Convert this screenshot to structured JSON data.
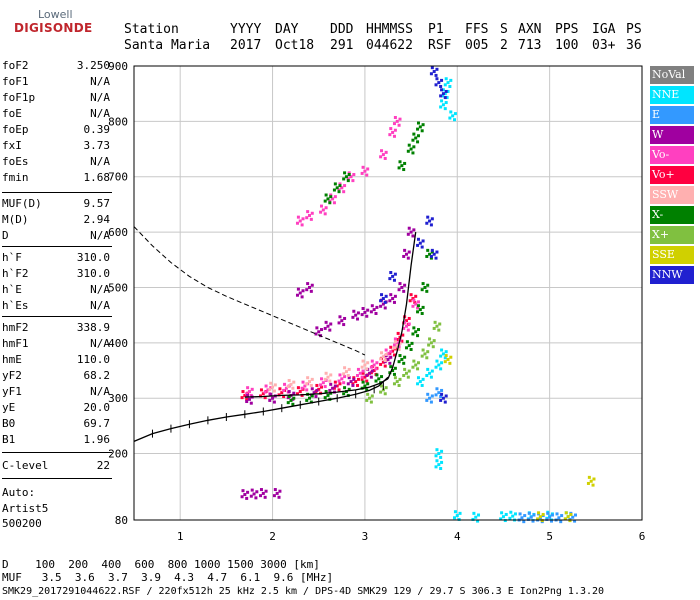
{
  "logo": {
    "line1": "Lowell",
    "line2": "DIGISONDE"
  },
  "header": {
    "labels": [
      "Station",
      "YYYY",
      "DAY",
      "DDD",
      "HHMMSS",
      "P1",
      "FFS",
      "S",
      "AXN",
      "PPS",
      "IGA",
      "PS"
    ],
    "values": [
      "Santa Maria",
      "2017",
      "Oct18",
      "291",
      "044622",
      "RSF",
      "005",
      "2",
      "713",
      "100",
      "03+",
      "36"
    ]
  },
  "params": [
    {
      "key": "foF2",
      "value": "3.250"
    },
    {
      "key": "foF1",
      "value": "N/A"
    },
    {
      "key": "foF1p",
      "value": "N/A"
    },
    {
      "key": "foE",
      "value": "N/A"
    },
    {
      "key": "foEp",
      "value": "0.39"
    },
    {
      "key": "fxI",
      "value": "3.73"
    },
    {
      "key": "foEs",
      "value": "N/A"
    },
    {
      "key": "fmin",
      "value": "1.68"
    },
    {
      "key": "MUF(D)",
      "value": "9.57"
    },
    {
      "key": "M(D)",
      "value": "2.94"
    },
    {
      "key": "D",
      "value": "N/A"
    },
    {
      "key": "h`F",
      "value": "310.0"
    },
    {
      "key": "h`F2",
      "value": "310.0"
    },
    {
      "key": "h`E",
      "value": "N/A"
    },
    {
      "key": "h`Es",
      "value": "N/A"
    },
    {
      "key": "hmF2",
      "value": "338.9"
    },
    {
      "key": "hmF1",
      "value": "N/A"
    },
    {
      "key": "hmE",
      "value": "110.0"
    },
    {
      "key": "yF2",
      "value": "68.2"
    },
    {
      "key": "yF1",
      "value": "N/A"
    },
    {
      "key": "yE",
      "value": "20.0"
    },
    {
      "key": "B0",
      "value": "69.7"
    },
    {
      "key": "B1",
      "value": "1.96"
    },
    {
      "key": "C-level",
      "value": "22"
    }
  ],
  "autoscale": [
    "Auto:",
    "Artist5",
    "500200"
  ],
  "bottom": {
    "line1": "D    100  200  400  600  800 1000 1500 3000 [km]",
    "line2": "MUF   3.5  3.6  3.7  3.9  4.3  4.7  6.1  9.6 [MHz]"
  },
  "footer": "SMK29_2017291044622.RSF / 220fx512h 25 kHz 2.5 km / DPS-4D SMK29 129 / 29.7 S 306.3 E Ion2Png 1.3.20",
  "legend": [
    {
      "label": "NoVal",
      "color": "#808080"
    },
    {
      "label": "NNE",
      "color": "#00e5ff"
    },
    {
      "label": "E",
      "color": "#3399ff"
    },
    {
      "label": "W",
      "color": "#a000a0"
    },
    {
      "label": "Vo-",
      "color": "#ff40c0"
    },
    {
      "label": "Vo+",
      "color": "#ff0040"
    },
    {
      "label": "SSW",
      "color": "#ffb0b0"
    },
    {
      "label": "X-",
      "color": "#008000"
    },
    {
      "label": "X+",
      "color": "#80c040"
    },
    {
      "label": "SSE",
      "color": "#d0d000"
    },
    {
      "label": "NNW",
      "color": "#2020d0"
    }
  ],
  "chart_data": {
    "type": "scatter",
    "xlim": [
      0.5,
      6.0
    ],
    "ylim": [
      80,
      900
    ],
    "xticks": [
      1,
      2,
      3,
      4,
      5,
      6
    ],
    "yticks": [
      80,
      200,
      300,
      400,
      500,
      600,
      700,
      800,
      900
    ],
    "grid": true,
    "legend_position": "right",
    "series": [
      {
        "colorIndex": 5,
        "points": [
          [
            1.7,
            305
          ],
          [
            1.9,
            308
          ],
          [
            2.1,
            310
          ],
          [
            2.3,
            312
          ],
          [
            2.5,
            316
          ],
          [
            2.7,
            322
          ],
          [
            2.9,
            330
          ],
          [
            3.0,
            338
          ],
          [
            3.1,
            350
          ],
          [
            3.2,
            365
          ],
          [
            3.3,
            385
          ],
          [
            3.38,
            410
          ],
          [
            3.45,
            440
          ],
          [
            3.52,
            480
          ]
        ]
      },
      {
        "colorIndex": 4,
        "points": [
          [
            1.75,
            312
          ],
          [
            1.95,
            315
          ],
          [
            2.15,
            318
          ],
          [
            2.35,
            322
          ],
          [
            2.55,
            328
          ],
          [
            2.75,
            335
          ],
          [
            2.95,
            345
          ],
          [
            3.1,
            360
          ],
          [
            3.25,
            380
          ],
          [
            3.35,
            400
          ],
          [
            3.45,
            430
          ],
          [
            3.55,
            470
          ],
          [
            2.3,
            620
          ],
          [
            2.4,
            630
          ],
          [
            2.55,
            640
          ],
          [
            2.65,
            660
          ],
          [
            2.75,
            680
          ],
          [
            2.85,
            700
          ],
          [
            3.0,
            710
          ],
          [
            3.2,
            740
          ],
          [
            3.3,
            780
          ],
          [
            3.35,
            800
          ]
        ]
      },
      {
        "colorIndex": 3,
        "points": [
          [
            1.75,
            298
          ],
          [
            2.0,
            300
          ],
          [
            2.2,
            305
          ],
          [
            2.45,
            310
          ],
          [
            2.65,
            318
          ],
          [
            2.85,
            330
          ],
          [
            3.05,
            345
          ],
          [
            3.25,
            370
          ],
          [
            2.5,
            420
          ],
          [
            2.6,
            430
          ],
          [
            2.75,
            440
          ],
          [
            2.9,
            450
          ],
          [
            3.0,
            455
          ],
          [
            3.1,
            460
          ],
          [
            3.2,
            470
          ],
          [
            3.3,
            480
          ],
          [
            3.4,
            500
          ],
          [
            2.3,
            490
          ],
          [
            2.4,
            500
          ],
          [
            3.45,
            560
          ],
          [
            3.5,
            600
          ],
          [
            1.7,
            126
          ],
          [
            1.8,
            127
          ],
          [
            1.9,
            128
          ],
          [
            2.05,
            128
          ]
        ]
      },
      {
        "colorIndex": 7,
        "points": [
          [
            2.2,
            296
          ],
          [
            2.4,
            300
          ],
          [
            2.6,
            305
          ],
          [
            2.8,
            312
          ],
          [
            3.0,
            322
          ],
          [
            3.15,
            335
          ],
          [
            3.3,
            350
          ],
          [
            3.4,
            370
          ],
          [
            3.48,
            395
          ],
          [
            3.55,
            420
          ],
          [
            3.6,
            460
          ],
          [
            3.65,
            500
          ],
          [
            3.7,
            560
          ],
          [
            3.4,
            720
          ],
          [
            3.5,
            750
          ],
          [
            3.55,
            770
          ],
          [
            3.6,
            790
          ],
          [
            2.6,
            660
          ],
          [
            2.7,
            680
          ],
          [
            2.8,
            700
          ]
        ]
      },
      {
        "colorIndex": 8,
        "points": [
          [
            3.05,
            300
          ],
          [
            3.2,
            315
          ],
          [
            3.35,
            330
          ],
          [
            3.45,
            345
          ],
          [
            3.55,
            360
          ],
          [
            3.65,
            380
          ],
          [
            3.72,
            400
          ],
          [
            3.78,
            430
          ]
        ]
      },
      {
        "colorIndex": 6,
        "points": [
          [
            2.0,
            320
          ],
          [
            2.2,
            325
          ],
          [
            2.4,
            330
          ],
          [
            2.6,
            338
          ],
          [
            2.8,
            348
          ],
          [
            3.0,
            360
          ],
          [
            3.2,
            375
          ],
          [
            3.35,
            395
          ]
        ]
      },
      {
        "colorIndex": 1,
        "points": [
          [
            3.6,
            330
          ],
          [
            3.7,
            345
          ],
          [
            3.8,
            360
          ],
          [
            3.85,
            380
          ],
          [
            3.85,
            830
          ],
          [
            3.87,
            850
          ],
          [
            3.9,
            870
          ],
          [
            3.95,
            810
          ],
          [
            3.8,
            200
          ],
          [
            3.8,
            180
          ],
          [
            4.0,
            88
          ],
          [
            4.2,
            85
          ],
          [
            4.5,
            86
          ],
          [
            4.6,
            87
          ],
          [
            4.8,
            86
          ],
          [
            5.0,
            87
          ],
          [
            5.2,
            86
          ]
        ]
      },
      {
        "colorIndex": 2,
        "points": [
          [
            3.7,
            300
          ],
          [
            3.8,
            310
          ],
          [
            4.7,
            84
          ],
          [
            4.8,
            85
          ],
          [
            4.9,
            84
          ],
          [
            5.0,
            85
          ],
          [
            5.1,
            84
          ],
          [
            5.25,
            85
          ]
        ]
      },
      {
        "colorIndex": 10,
        "points": [
          [
            3.75,
            890
          ],
          [
            3.8,
            870
          ],
          [
            3.85,
            850
          ],
          [
            3.7,
            620
          ],
          [
            3.6,
            580
          ],
          [
            3.75,
            560
          ],
          [
            3.85,
            300
          ],
          [
            3.2,
            480
          ],
          [
            3.3,
            520
          ]
        ]
      },
      {
        "colorIndex": 9,
        "points": [
          [
            5.45,
            150
          ],
          [
            5.2,
            86
          ],
          [
            4.9,
            86
          ],
          [
            3.9,
            370
          ]
        ]
      }
    ],
    "virtual_trace": [
      [
        1.7,
        302
      ],
      [
        1.9,
        303
      ],
      [
        2.1,
        305
      ],
      [
        2.3,
        306
      ],
      [
        2.5,
        308
      ],
      [
        2.7,
        311
      ],
      [
        2.9,
        315
      ],
      [
        3.05,
        320
      ],
      [
        3.15,
        326
      ],
      [
        3.25,
        335
      ]
    ],
    "upper_trace": [
      [
        3.25,
        335
      ],
      [
        3.3,
        355
      ],
      [
        3.35,
        385
      ],
      [
        3.4,
        420
      ],
      [
        3.45,
        470
      ],
      [
        3.5,
        540
      ],
      [
        3.55,
        600
      ]
    ],
    "profile": [
      [
        0.5,
        222
      ],
      [
        0.7,
        236
      ],
      [
        0.9,
        245
      ],
      [
        1.1,
        253
      ],
      [
        1.3,
        260
      ],
      [
        1.5,
        266
      ],
      [
        1.7,
        271
      ],
      [
        1.9,
        276
      ],
      [
        2.1,
        282
      ],
      [
        2.3,
        288
      ],
      [
        2.5,
        294
      ],
      [
        2.7,
        300
      ],
      [
        2.9,
        307
      ],
      [
        3.05,
        314
      ],
      [
        3.15,
        322
      ],
      [
        3.25,
        338
      ]
    ],
    "profile_bars": [
      [
        0.7,
        236
      ],
      [
        0.9,
        245
      ],
      [
        1.1,
        253
      ],
      [
        1.3,
        260
      ],
      [
        1.5,
        266
      ],
      [
        1.7,
        271
      ],
      [
        1.9,
        276
      ],
      [
        2.1,
        282
      ],
      [
        2.3,
        288
      ],
      [
        2.5,
        294
      ],
      [
        2.7,
        300
      ],
      [
        2.9,
        307
      ],
      [
        3.1,
        316
      ],
      [
        3.2,
        322
      ]
    ],
    "muf_curve": [
      [
        0.5,
        610
      ],
      [
        0.7,
        575
      ],
      [
        0.9,
        545
      ],
      [
        1.1,
        520
      ],
      [
        1.3,
        500
      ],
      [
        1.5,
        484
      ],
      [
        1.7,
        470
      ],
      [
        1.9,
        456
      ],
      [
        2.1,
        442
      ],
      [
        2.3,
        428
      ],
      [
        2.5,
        414
      ],
      [
        2.7,
        400
      ],
      [
        2.9,
        386
      ],
      [
        3.0,
        378
      ]
    ]
  }
}
